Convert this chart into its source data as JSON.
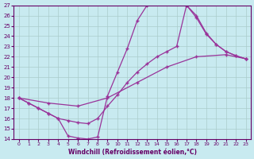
{
  "xlabel": "Windchill (Refroidissement éolien,°C)",
  "bg_color": "#c8eaf0",
  "line_color": "#993399",
  "grid_color": "#aacccc",
  "text_color": "#660066",
  "xlim": [
    -0.5,
    23.5
  ],
  "ylim": [
    14,
    27
  ],
  "xticks": [
    0,
    1,
    2,
    3,
    4,
    5,
    6,
    7,
    8,
    9,
    10,
    11,
    12,
    13,
    14,
    15,
    16,
    17,
    18,
    19,
    20,
    21,
    22,
    23
  ],
  "yticks": [
    14,
    15,
    16,
    17,
    18,
    19,
    20,
    21,
    22,
    23,
    24,
    25,
    26,
    27
  ],
  "line1_x": [
    0,
    1,
    2,
    3,
    4,
    5,
    6,
    7,
    8,
    9,
    10,
    11,
    12,
    13,
    14,
    15,
    16,
    17,
    18,
    19,
    20,
    21,
    22,
    23
  ],
  "line1_y": [
    18.0,
    17.5,
    17.0,
    16.5,
    16.0,
    14.3,
    14.1,
    14.0,
    14.2,
    18.2,
    20.5,
    22.8,
    25.5,
    27.0,
    27.2,
    27.2,
    27.3,
    27.0,
    26.0,
    24.3,
    23.2,
    22.5,
    22.1,
    21.8
  ],
  "line2_x": [
    0,
    1,
    2,
    3,
    4,
    5,
    6,
    7,
    8,
    9,
    10,
    11,
    12,
    13,
    14,
    15,
    16,
    17,
    18,
    19,
    20,
    21,
    22,
    23
  ],
  "line2_y": [
    18.0,
    17.5,
    17.0,
    16.5,
    16.0,
    15.8,
    15.6,
    15.5,
    16.0,
    17.2,
    18.3,
    19.5,
    20.5,
    21.3,
    22.0,
    22.5,
    23.0,
    27.0,
    25.8,
    24.2,
    23.2,
    22.5,
    22.1,
    21.8
  ],
  "line3_x": [
    0,
    3,
    6,
    9,
    12,
    15,
    18,
    21,
    23
  ],
  "line3_y": [
    18.0,
    17.5,
    17.2,
    18.0,
    19.5,
    21.0,
    22.0,
    22.2,
    21.8
  ]
}
